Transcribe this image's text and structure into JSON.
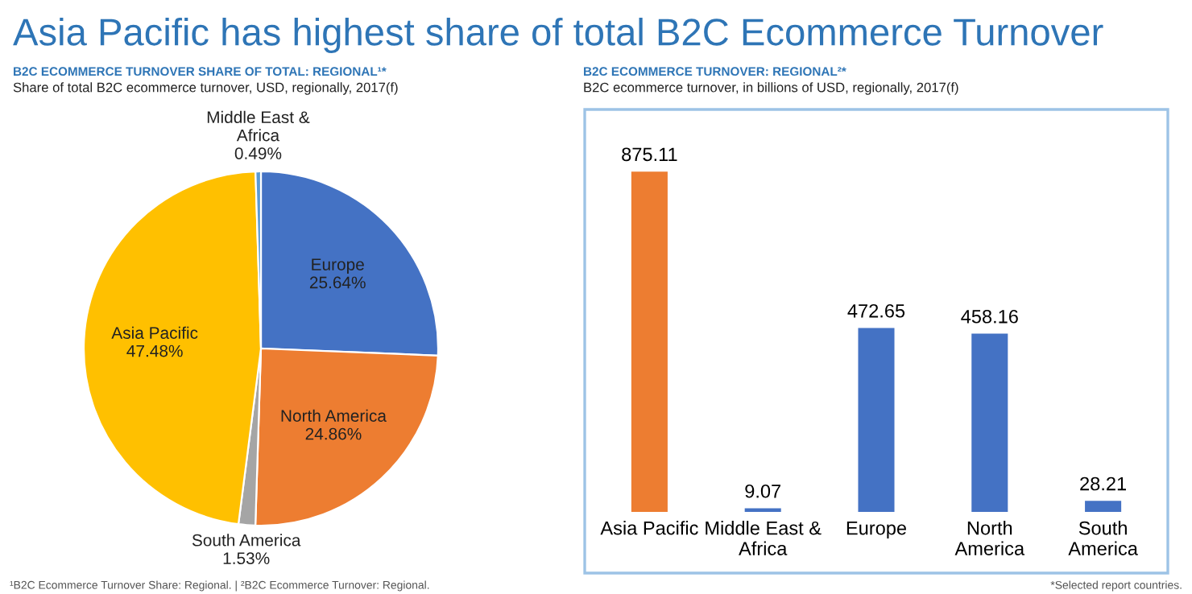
{
  "chart_data": [
    {
      "type": "other",
      "title": "Asia Pacific has highest share of total B2C Ecommerce Turnover",
      "annotations": [
        "¹B2C Ecommerce Turnover Share: Regional. | ²B2C Ecommerce Turnover: Regional.",
        "*Selected report countries."
      ]
    },
    {
      "type": "pie",
      "title": "B2C ECOMMERCE TURNOVER SHARE OF TOTAL: REGIONAL¹*",
      "subtitle": "Share of total B2C ecommerce turnover, USD, regionally, 2017(f)",
      "categories": [
        "Europe",
        "North America",
        "South America",
        "Asia Pacific",
        "Middle East &\nAfrica"
      ],
      "values": [
        25.64,
        24.86,
        1.53,
        47.48,
        0.49
      ],
      "value_labels": [
        "25.64%",
        "24.86%",
        "1.53%",
        "47.48%",
        "0.49%"
      ],
      "colors": [
        "#4472c4",
        "#ed7d31",
        "#a5a5a5",
        "#ffc000",
        "#5b9bd5"
      ]
    },
    {
      "type": "bar",
      "title": "B2C ECOMMERCE TURNOVER: REGIONAL²*",
      "subtitle": "B2C ecommerce turnover, in billions of USD, regionally, 2017(f)",
      "categories": [
        "Asia Pacific",
        "Middle East &\nAfrica",
        "Europe",
        "North\nAmerica",
        "South\nAmerica"
      ],
      "values": [
        875.11,
        9.07,
        472.65,
        458.16,
        28.21
      ],
      "colors": [
        "#ed7d31",
        "#4472c4",
        "#4472c4",
        "#4472c4",
        "#4472c4"
      ],
      "data_labels": true
    }
  ]
}
